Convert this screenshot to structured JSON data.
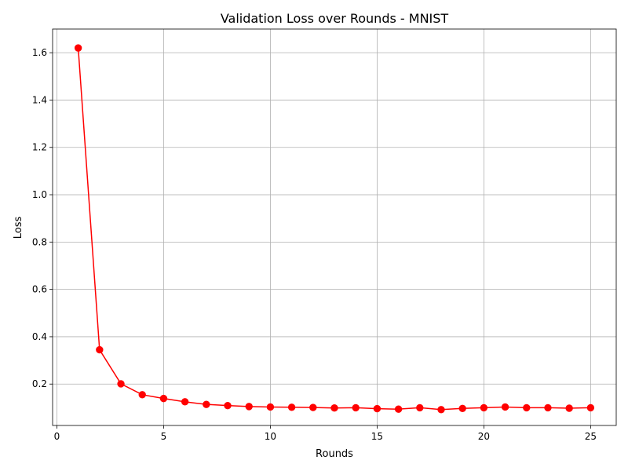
{
  "chart_data": {
    "type": "line",
    "title": "Validation Loss over Rounds - MNIST",
    "xlabel": "Rounds",
    "ylabel": "Loss",
    "xlim": [
      -0.2,
      26.2
    ],
    "ylim": [
      0.025,
      1.7
    ],
    "xticks": [
      0,
      5,
      10,
      15,
      20,
      25
    ],
    "xtick_labels": [
      "0",
      "5",
      "10",
      "15",
      "20",
      "25"
    ],
    "yticks": [
      0.2,
      0.4,
      0.6,
      0.8,
      1.0,
      1.2,
      1.4,
      1.6
    ],
    "ytick_labels": [
      "0.2",
      "0.4",
      "0.6",
      "0.8",
      "1.0",
      "1.2",
      "1.4",
      "1.6"
    ],
    "grid": true,
    "legend": "none",
    "series": [
      {
        "color": "#ff0000",
        "marker": "circle",
        "x": [
          1,
          2,
          3,
          4,
          5,
          6,
          7,
          8,
          9,
          10,
          11,
          12,
          13,
          14,
          15,
          16,
          17,
          18,
          19,
          20,
          21,
          22,
          23,
          24,
          25
        ],
        "y": [
          1.62,
          0.345,
          0.201,
          0.155,
          0.139,
          0.125,
          0.114,
          0.109,
          0.105,
          0.103,
          0.102,
          0.101,
          0.099,
          0.1,
          0.096,
          0.094,
          0.1,
          0.092,
          0.097,
          0.1,
          0.103,
          0.1,
          0.1,
          0.098,
          0.1
        ]
      }
    ]
  }
}
